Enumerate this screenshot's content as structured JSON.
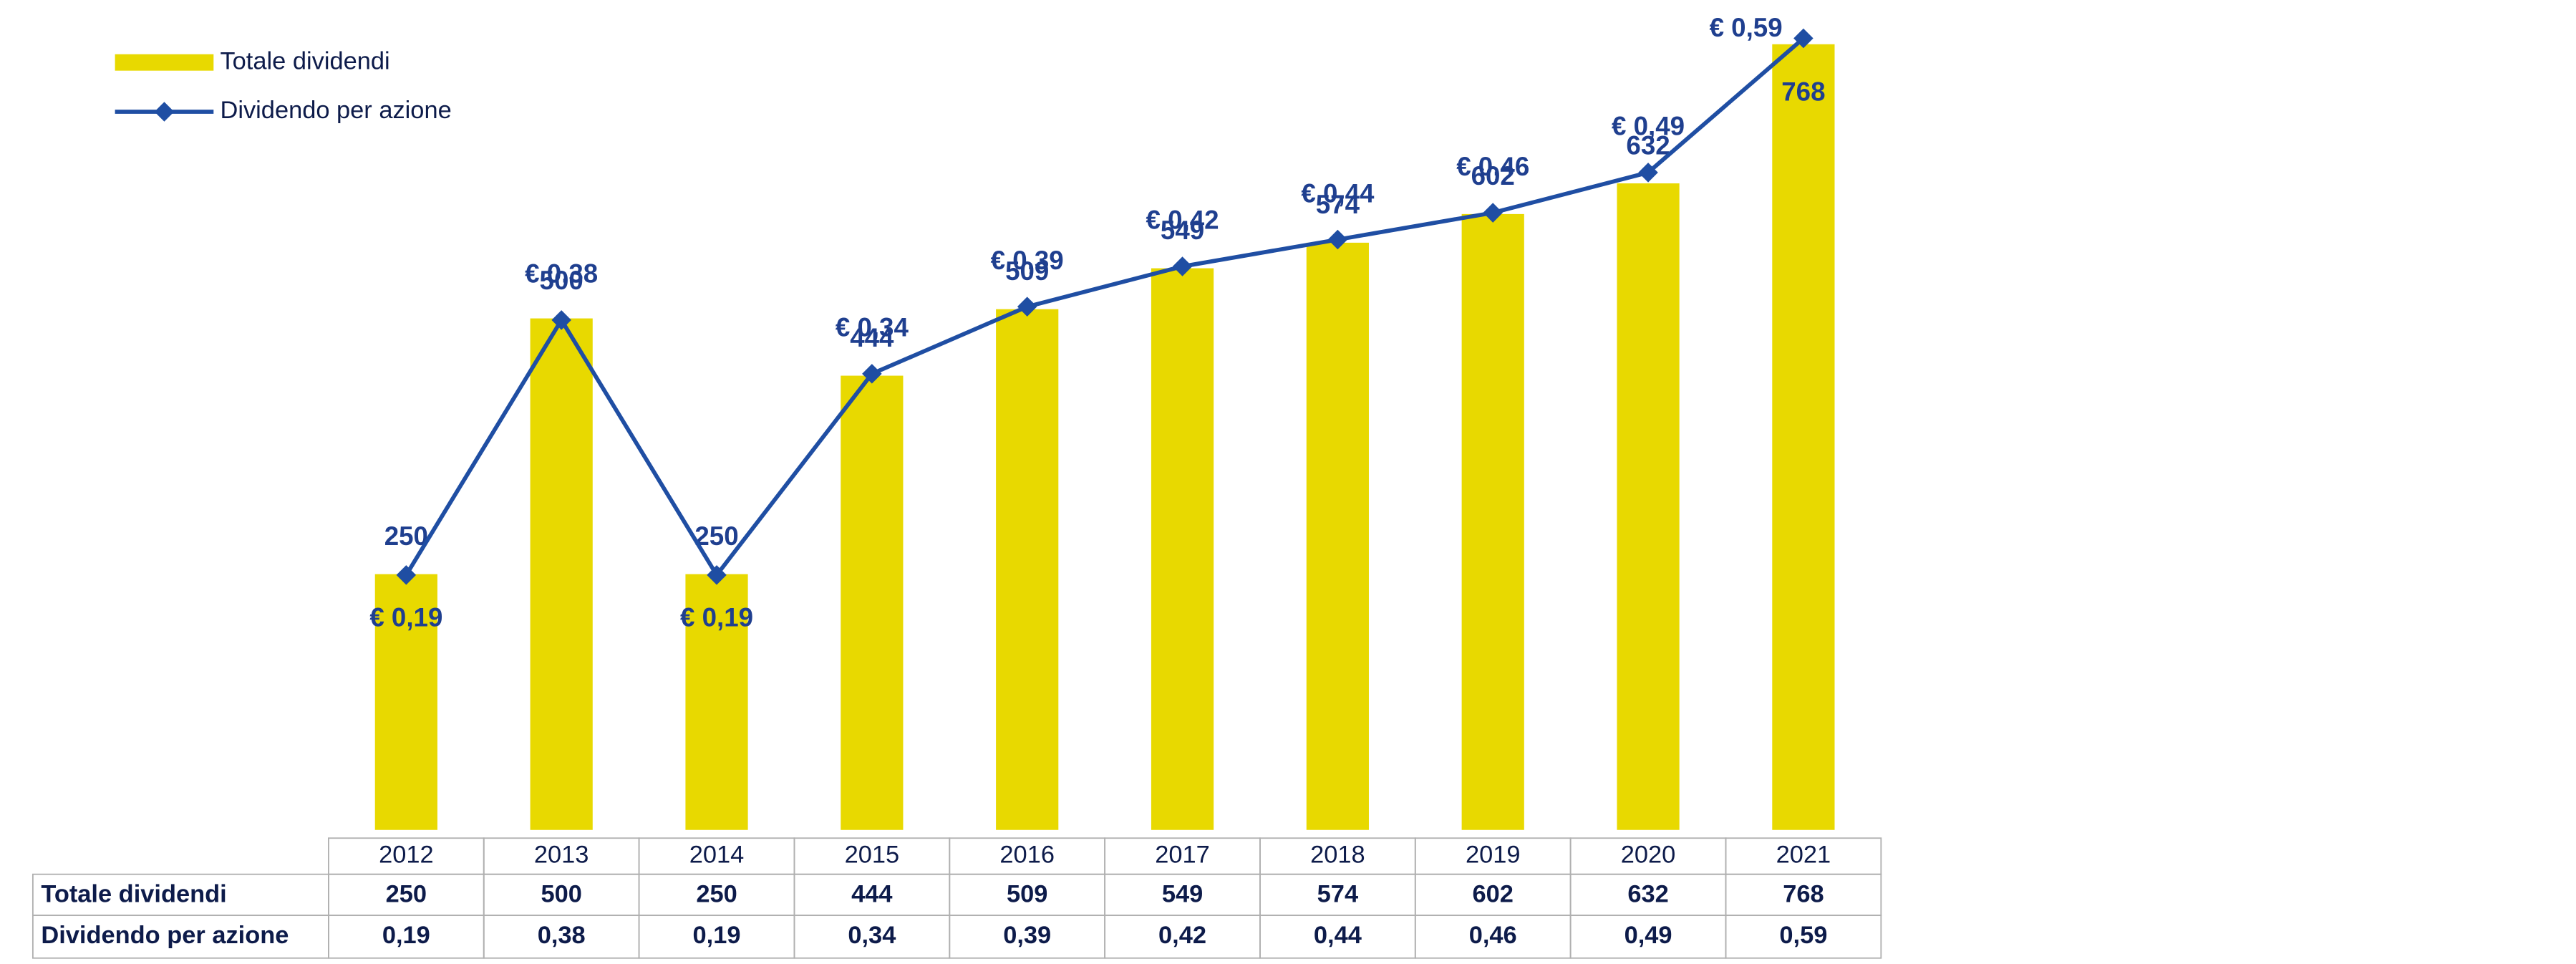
{
  "chart_data": {
    "type": "bar-line",
    "categories": [
      "2012",
      "2013",
      "2014",
      "2015",
      "2016",
      "2017",
      "2018",
      "2019",
      "2020",
      "2021"
    ],
    "series": [
      {
        "name": "Totale dividendi",
        "type": "bar",
        "color": "#e8d900",
        "values": [
          250,
          500,
          250,
          444,
          509,
          549,
          574,
          602,
          632,
          768
        ]
      },
      {
        "name": "Dividendo per azione",
        "type": "line",
        "axis": "y2",
        "color": "#1f4ea3",
        "values": [
          0.19,
          0.38,
          0.19,
          0.34,
          0.39,
          0.42,
          0.44,
          0.46,
          0.49,
          0.59
        ],
        "value_labels": [
          "€ 0,19",
          "€ 0,38",
          "€ 0,19",
          "€ 0,34",
          "€ 0,39",
          "€ 0,42",
          "€ 0,44",
          "€ 0,46",
          "€ 0,49",
          "€ 0,59"
        ],
        "table_labels": [
          "0,19",
          "0,38",
          "0,19",
          "0,34",
          "0,39",
          "0,42",
          "0,44",
          "0,46",
          "0,49",
          "0,59"
        ]
      }
    ],
    "ylim": [
      0,
      800
    ],
    "y2lim": [
      0,
      0.61
    ],
    "legend": "top-left"
  }
}
